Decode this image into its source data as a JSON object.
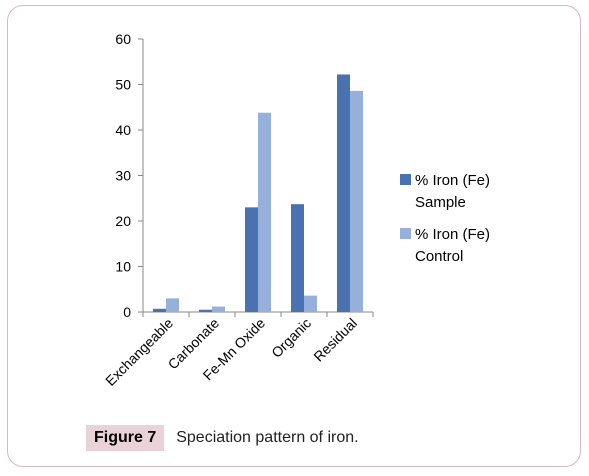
{
  "chart_data": {
    "type": "bar",
    "categories": [
      "Exchangeable",
      "Carbonate",
      "Fe-Mn Oxide",
      "Organic",
      "Residual"
    ],
    "series": [
      {
        "name": "% Iron (Fe) Sample",
        "name_lines": [
          "% Iron (Fe)",
          "Sample"
        ],
        "color": "#4a72b0",
        "values": [
          0.7,
          0.5,
          23.0,
          23.7,
          52.2
        ]
      },
      {
        "name": "% Iron (Fe) Control",
        "name_lines": [
          "% Iron (Fe)",
          "Control"
        ],
        "color": "#96b0dc",
        "values": [
          3.0,
          1.2,
          43.8,
          3.6,
          48.6
        ]
      }
    ],
    "ylim": [
      0,
      60
    ],
    "yticks": [
      0,
      10,
      20,
      30,
      40,
      50,
      60
    ],
    "grid": false,
    "legend_position": "right"
  },
  "caption": {
    "label": "Figure 7",
    "text": "Speciation pattern of iron."
  }
}
